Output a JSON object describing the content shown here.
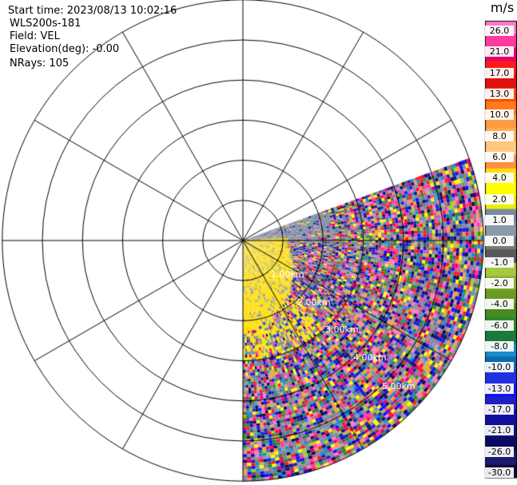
{
  "header": {
    "start_time": "Start time: 2023/08/13 10:02:16",
    "site": "WLS200s-181",
    "field": "Field: VEL",
    "elevation": "Elevation(deg): -0.00",
    "nrays": "NRays: 105"
  },
  "chart_data": {
    "type": "heatmap",
    "projection": "polar PPI",
    "field": "VEL",
    "units": "m/s",
    "range_rings_km": [
      1.0,
      2.0,
      3.0,
      4.0,
      5.0,
      6.0
    ],
    "ring_labels": [
      "1.00km",
      "2.00km",
      "3.00km",
      "4.00km",
      "5.00km"
    ],
    "spokes_deg_step": 30,
    "sector_azimuth_deg": [
      70,
      180
    ],
    "colorbar": {
      "unit_label": "m/s",
      "ticks": [
        "26.0",
        "21.0",
        "17.0",
        "13.0",
        "10.0",
        "8.0",
        "6.0",
        "4.0",
        "2.0",
        "1.0",
        "0.0",
        "-1.0",
        "-2.0",
        "-4.0",
        "-6.0",
        "-8.0",
        "-10.0",
        "-13.0",
        "-17.0",
        "-21.0",
        "-26.0",
        "-30.0"
      ],
      "colors": [
        "#ff7ac8",
        "#ff3aa0",
        "#e8006a",
        "#ff1a1a",
        "#e01010",
        "#ff4a00",
        "#ff7a1a",
        "#ff9a40",
        "#ffb050",
        "#ffc880",
        "#ff9040",
        "#ffe000",
        "#ffff00",
        "#e8f000",
        "#7a8aa0",
        "#8a9aaa",
        "#7a7a7a",
        "#5a5a5a",
        "#a8c840",
        "#88b030",
        "#6a9a20",
        "#4a8a20",
        "#2a8a2a",
        "#1a7a3a",
        "#1a8ac8",
        "#0a6ab0",
        "#2030e0",
        "#1010ff",
        "#2020c0",
        "#1010a0",
        "#101080",
        "#0a0a60",
        "#1a1a70",
        "#0a0a40"
      ]
    }
  }
}
